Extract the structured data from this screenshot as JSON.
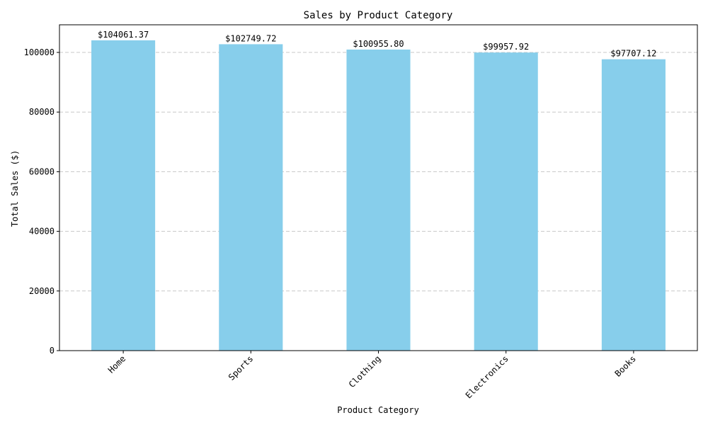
{
  "chart_data": {
    "type": "bar",
    "title": "Sales by Product Category",
    "xlabel": "Product Category",
    "ylabel": "Total Sales ($)",
    "categories": [
      "Home",
      "Sports",
      "Clothing",
      "Electronics",
      "Books"
    ],
    "values": [
      104061.37,
      102749.72,
      100955.8,
      99957.92,
      97707.12
    ],
    "data_labels": [
      "$104061.37",
      "$102749.72",
      "$100955.80",
      "$99957.92",
      "$97707.12"
    ],
    "yticks": [
      0,
      20000,
      40000,
      60000,
      80000,
      100000
    ],
    "ylim": [
      0,
      109264
    ],
    "grid": "y-dashed",
    "bar_color": "#87ceeb",
    "legend": "none"
  }
}
